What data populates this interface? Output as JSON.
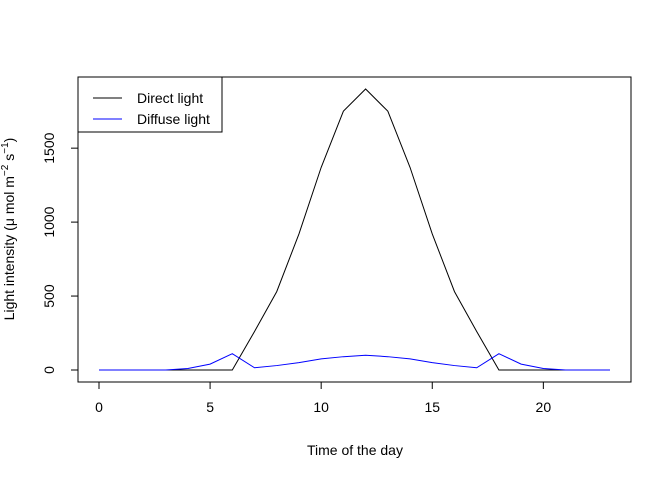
{
  "chart_data": {
    "type": "line",
    "xlabel": "Time of the day",
    "ylabel_parts": {
      "base": "Light intensity (",
      "mu": "μ",
      "mid1": " mol m",
      "sup1": "−2",
      "mid2": " s",
      "sup2": "−1",
      "end": ")"
    },
    "x": [
      0,
      1,
      2,
      3,
      4,
      5,
      6,
      7,
      8,
      9,
      10,
      11,
      12,
      13,
      14,
      15,
      16,
      17,
      18,
      19,
      20,
      21,
      22,
      23
    ],
    "xlim": [
      0,
      23
    ],
    "ylim": [
      0,
      1900
    ],
    "xticks": [
      0,
      5,
      10,
      15,
      20
    ],
    "xtick_labels": [
      "0",
      "5",
      "10",
      "15",
      "20"
    ],
    "yticks": [
      0,
      500,
      1000,
      1500
    ],
    "ytick_labels": [
      "0",
      "500",
      "1000",
      "1500"
    ],
    "grid": false,
    "legend_position": "top-left",
    "series": [
      {
        "name": "Direct light",
        "color": "#000000",
        "values": [
          0,
          0,
          0,
          0,
          0,
          0,
          0,
          260,
          530,
          920,
          1370,
          1750,
          1900,
          1750,
          1370,
          920,
          530,
          260,
          0,
          0,
          0,
          0,
          0,
          0
        ]
      },
      {
        "name": "Diffuse light",
        "color": "#0000ff",
        "values": [
          0,
          0,
          0,
          0,
          10,
          40,
          110,
          15,
          30,
          50,
          75,
          90,
          100,
          90,
          75,
          50,
          30,
          15,
          110,
          40,
          10,
          0,
          0,
          0
        ]
      }
    ]
  }
}
